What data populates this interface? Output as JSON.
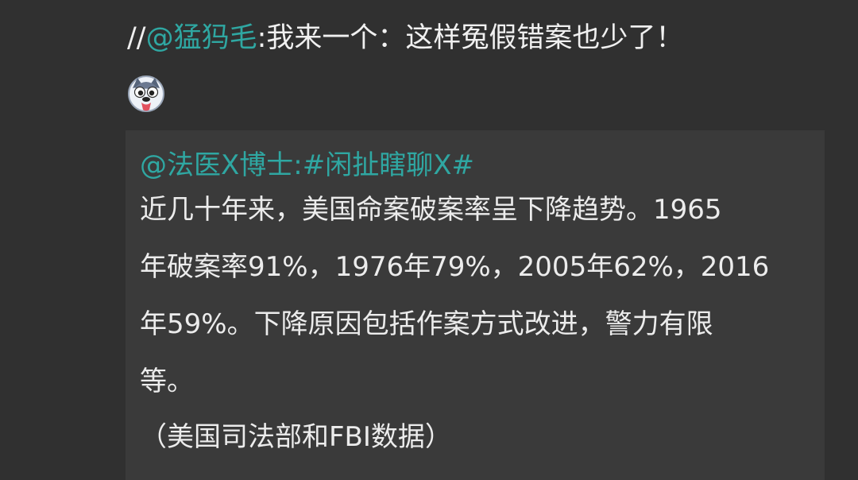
{
  "comment": {
    "prefix": "//",
    "mention": "@猛犸毛",
    "separator": ":",
    "text": "我来一个：这样冤假错案也少了！",
    "emoji": "husky-dog-emoji"
  },
  "quote": {
    "author_mention": "@法医X博士",
    "separator": ":",
    "topic": "#闲扯瞎聊X#",
    "lines": [
      "近几十年来，美国命案破案率呈下降趋势。1965",
      "年破案率91%，1976年79%，2005年62%，2016",
      "年59%。下降原因包括作案方式改进，警力有限",
      "等。",
      "（美国司法部和FBI数据）"
    ]
  },
  "colors": {
    "background": "#303030",
    "quote_background": "#3a3a3a",
    "link": "#2fa7a2",
    "text": "#ececec"
  }
}
